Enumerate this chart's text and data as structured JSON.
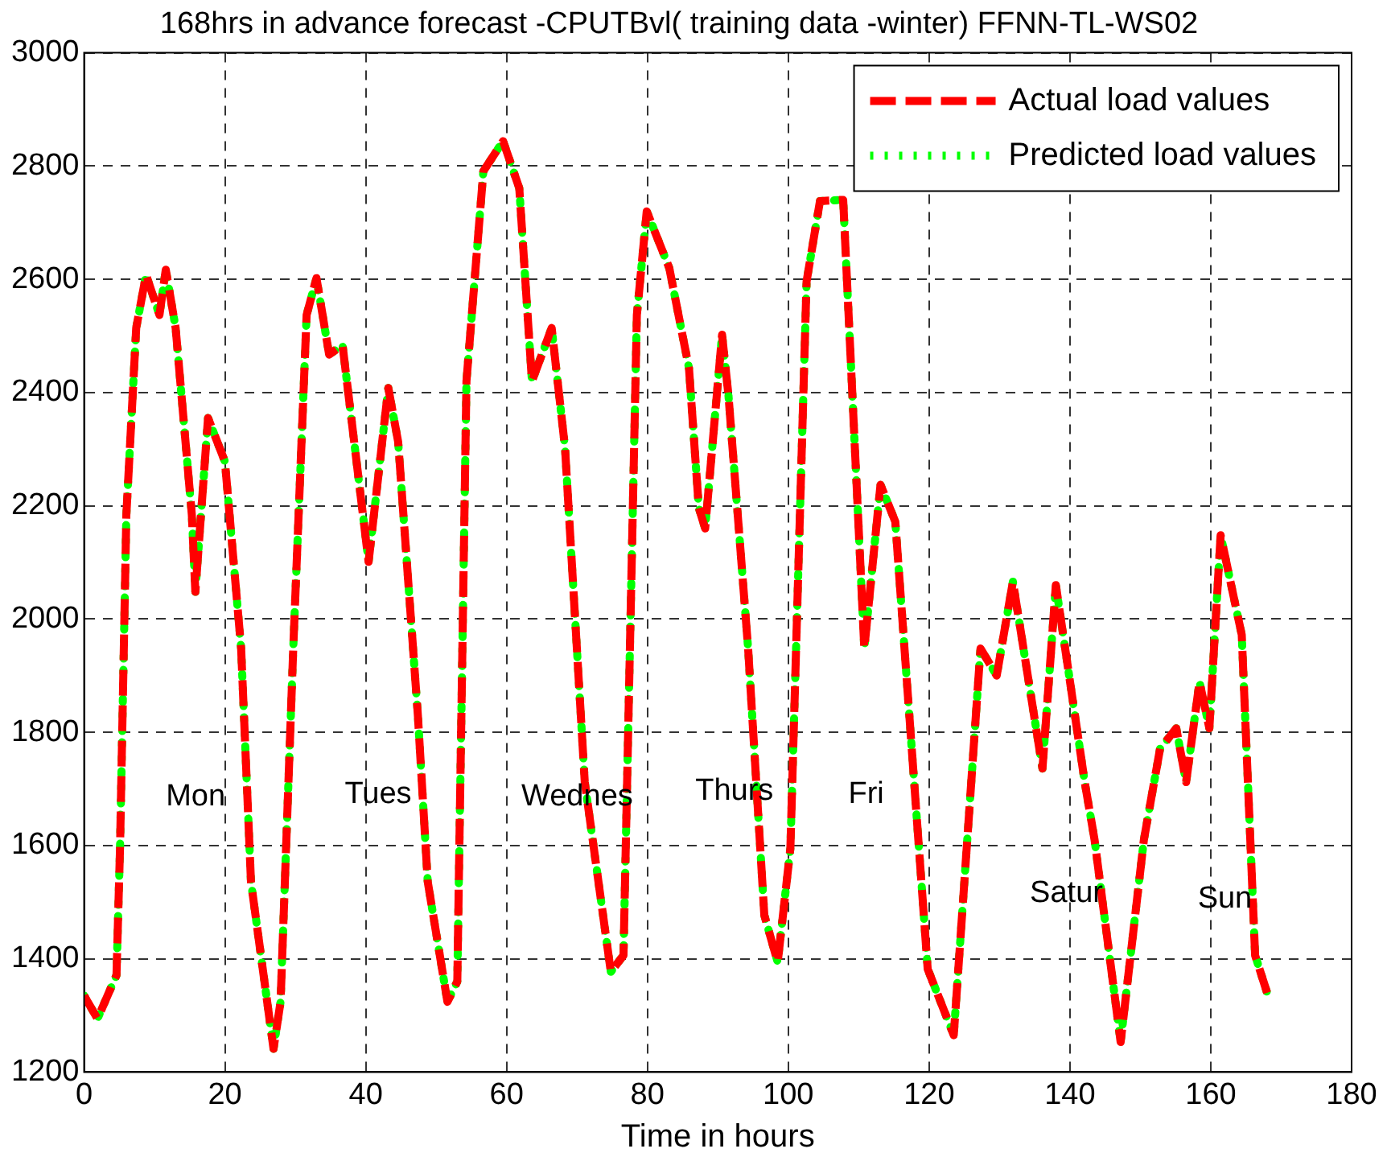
{
  "chart_data": {
    "type": "line",
    "title": "168hrs in advance forecast -CPUTBvl( training data -winter) FFNN-TL-WS02",
    "xlabel": "Time in hours",
    "x": [
      0,
      1.9,
      4.6,
      5.1,
      6,
      7.4,
      8.8,
      10.7,
      11.6,
      13,
      15.3,
      15.8,
      17.6,
      20,
      22.3,
      23.7,
      26.9,
      27.9,
      29.7,
      31.6,
      33,
      34.8,
      36.7,
      40.4,
      43.2,
      44.6,
      47.4,
      48.8,
      51.6,
      53,
      54.3,
      56.7,
      59.5,
      61.8,
      63.6,
      66.4,
      68.3,
      71.1,
      74.8,
      76.6,
      78.5,
      79.9,
      83.1,
      85.9,
      87.3,
      88.2,
      90.6,
      91.5,
      94.3,
      96.6,
      98.5,
      100.3,
      102.6,
      104.5,
      107.3,
      107.8,
      110.8,
      113.1,
      115.2,
      119.8,
      123.5,
      127.3,
      129.6,
      131.9,
      136.1,
      138,
      142.1,
      143.5,
      147.2,
      150.5,
      152.8,
      155.1,
      156.5,
      158.4,
      159.8,
      161.4,
      164.4,
      166.3,
      168
    ],
    "series": [
      {
        "name": "Actual load values",
        "color": "#ff0000",
        "line_style": "dashed",
        "values": [
          1335,
          1294,
          1371,
          1595,
          2184,
          2514,
          2608,
          2537,
          2617,
          2514,
          2184,
          2048,
          2355,
          2278,
          1948,
          1536,
          1241,
          1324,
          1948,
          2537,
          2602,
          2467,
          2484,
          2101,
          2408,
          2313,
          1830,
          1536,
          1324,
          1360,
          2420,
          2791,
          2844,
          2761,
          2420,
          2514,
          2302,
          1712,
          1377,
          1406,
          2537,
          2720,
          2620,
          2443,
          2196,
          2160,
          2502,
          2396,
          1948,
          1477,
          1394,
          1595,
          2596,
          2738,
          2740,
          2740,
          1948,
          2237,
          2172,
          1382,
          1265,
          1948,
          1900,
          2066,
          1736,
          2060,
          1712,
          1610,
          1253,
          1610,
          1771,
          1807,
          1712,
          1889,
          1807,
          2148,
          1972,
          1406,
          1340
        ]
      },
      {
        "name": "Predicted load values",
        "color": "#00ff00",
        "line_style": "dotted",
        "values": [
          1335,
          1294,
          1371,
          1595,
          2184,
          2514,
          2608,
          2537,
          2617,
          2514,
          2184,
          2048,
          2355,
          2278,
          1948,
          1536,
          1241,
          1324,
          1948,
          2537,
          2602,
          2467,
          2484,
          2101,
          2408,
          2313,
          1830,
          1536,
          1324,
          1360,
          2420,
          2791,
          2844,
          2761,
          2420,
          2514,
          2302,
          1712,
          1377,
          1406,
          2537,
          2720,
          2620,
          2443,
          2196,
          2160,
          2502,
          2396,
          1948,
          1477,
          1394,
          1595,
          2596,
          2738,
          2740,
          2740,
          1948,
          2237,
          2172,
          1382,
          1265,
          1948,
          1900,
          2066,
          1736,
          2060,
          1712,
          1610,
          1253,
          1610,
          1771,
          1807,
          1712,
          1889,
          1807,
          2148,
          1972,
          1406,
          1340
        ]
      }
    ],
    "xlim": [
      0,
      180
    ],
    "xticks": [
      0,
      20,
      40,
      60,
      80,
      100,
      120,
      140,
      160,
      180
    ],
    "ylim": [
      1200,
      3000
    ],
    "yticks": [
      1200,
      1400,
      1600,
      1800,
      2000,
      2200,
      2400,
      2600,
      2800,
      3000
    ],
    "grid": true,
    "legend": "top right",
    "annotations": [
      "Mon",
      "Tues",
      "Wednes",
      "Thurs",
      "Fri",
      "Satur",
      "Sun"
    ]
  }
}
